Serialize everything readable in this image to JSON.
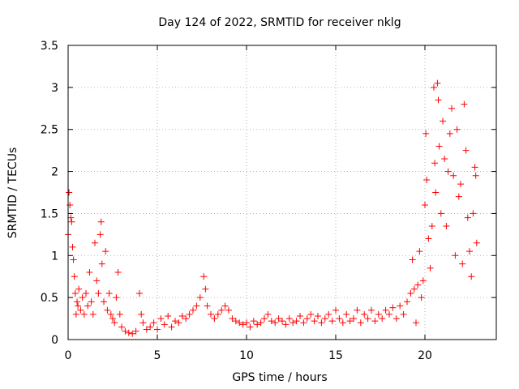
{
  "chart_data": {
    "type": "scatter",
    "title": "Day 124 of 2022, SRMTID for receiver nklg",
    "xlabel": "GPS time / hours",
    "ylabel": "SRMTID / TECUs",
    "xlim": [
      0,
      24
    ],
    "ylim": [
      0,
      3.5
    ],
    "xticks": [
      0,
      5,
      10,
      15,
      20
    ],
    "xtick_labels": [
      "0",
      "5",
      "10",
      "15",
      "20"
    ],
    "yticks": [
      0,
      0.5,
      1,
      1.5,
      2,
      2.5,
      3,
      3.5
    ],
    "ytick_labels": [
      "0",
      "0.5",
      "1",
      "1.5",
      "2",
      "2.5",
      "3",
      "3.5"
    ],
    "grid": true,
    "marker": "+",
    "series": [
      {
        "name": "SRMTID",
        "color": "#ff0000",
        "points": [
          [
            0.0,
            1.25
          ],
          [
            0.05,
            1.75
          ],
          [
            0.1,
            1.6
          ],
          [
            0.15,
            1.45
          ],
          [
            0.2,
            1.4
          ],
          [
            0.25,
            1.1
          ],
          [
            0.3,
            0.95
          ],
          [
            0.35,
            0.75
          ],
          [
            0.4,
            0.55
          ],
          [
            0.45,
            0.3
          ],
          [
            0.5,
            0.45
          ],
          [
            0.55,
            0.4
          ],
          [
            0.6,
            0.6
          ],
          [
            0.7,
            0.35
          ],
          [
            0.8,
            0.5
          ],
          [
            0.9,
            0.3
          ],
          [
            1.0,
            0.55
          ],
          [
            1.1,
            0.4
          ],
          [
            1.2,
            0.8
          ],
          [
            1.3,
            0.45
          ],
          [
            1.4,
            0.3
          ],
          [
            1.5,
            1.15
          ],
          [
            1.6,
            0.7
          ],
          [
            1.7,
            0.55
          ],
          [
            1.8,
            1.25
          ],
          [
            1.85,
            1.4
          ],
          [
            1.9,
            0.9
          ],
          [
            2.0,
            0.45
          ],
          [
            2.1,
            1.05
          ],
          [
            2.2,
            0.35
          ],
          [
            2.3,
            0.55
          ],
          [
            2.4,
            0.3
          ],
          [
            2.5,
            0.25
          ],
          [
            2.6,
            0.2
          ],
          [
            2.7,
            0.5
          ],
          [
            2.8,
            0.8
          ],
          [
            2.9,
            0.3
          ],
          [
            3.0,
            0.15
          ],
          [
            3.2,
            0.1
          ],
          [
            3.4,
            0.08
          ],
          [
            3.6,
            0.07
          ],
          [
            3.8,
            0.1
          ],
          [
            4.0,
            0.55
          ],
          [
            4.1,
            0.3
          ],
          [
            4.2,
            0.2
          ],
          [
            4.4,
            0.12
          ],
          [
            4.6,
            0.15
          ],
          [
            4.8,
            0.2
          ],
          [
            5.0,
            0.12
          ],
          [
            5.2,
            0.25
          ],
          [
            5.4,
            0.18
          ],
          [
            5.6,
            0.28
          ],
          [
            5.8,
            0.15
          ],
          [
            6.0,
            0.22
          ],
          [
            6.2,
            0.2
          ],
          [
            6.4,
            0.28
          ],
          [
            6.6,
            0.25
          ],
          [
            6.8,
            0.3
          ],
          [
            7.0,
            0.35
          ],
          [
            7.2,
            0.4
          ],
          [
            7.4,
            0.5
          ],
          [
            7.6,
            0.75
          ],
          [
            7.7,
            0.6
          ],
          [
            7.8,
            0.4
          ],
          [
            8.0,
            0.3
          ],
          [
            8.2,
            0.25
          ],
          [
            8.4,
            0.3
          ],
          [
            8.6,
            0.35
          ],
          [
            8.8,
            0.4
          ],
          [
            9.0,
            0.35
          ],
          [
            9.2,
            0.25
          ],
          [
            9.4,
            0.22
          ],
          [
            9.6,
            0.2
          ],
          [
            9.8,
            0.18
          ],
          [
            10.0,
            0.2
          ],
          [
            10.2,
            0.15
          ],
          [
            10.4,
            0.22
          ],
          [
            10.6,
            0.18
          ],
          [
            10.8,
            0.2
          ],
          [
            11.0,
            0.25
          ],
          [
            11.2,
            0.3
          ],
          [
            11.4,
            0.22
          ],
          [
            11.6,
            0.2
          ],
          [
            11.8,
            0.25
          ],
          [
            12.0,
            0.22
          ],
          [
            12.2,
            0.18
          ],
          [
            12.4,
            0.25
          ],
          [
            12.6,
            0.2
          ],
          [
            12.8,
            0.22
          ],
          [
            13.0,
            0.28
          ],
          [
            13.2,
            0.2
          ],
          [
            13.4,
            0.25
          ],
          [
            13.6,
            0.3
          ],
          [
            13.8,
            0.22
          ],
          [
            14.0,
            0.28
          ],
          [
            14.2,
            0.2
          ],
          [
            14.4,
            0.25
          ],
          [
            14.6,
            0.3
          ],
          [
            14.8,
            0.22
          ],
          [
            15.0,
            0.35
          ],
          [
            15.2,
            0.25
          ],
          [
            15.4,
            0.2
          ],
          [
            15.6,
            0.3
          ],
          [
            15.8,
            0.22
          ],
          [
            16.0,
            0.25
          ],
          [
            16.2,
            0.35
          ],
          [
            16.4,
            0.2
          ],
          [
            16.6,
            0.3
          ],
          [
            16.8,
            0.25
          ],
          [
            17.0,
            0.35
          ],
          [
            17.2,
            0.22
          ],
          [
            17.4,
            0.3
          ],
          [
            17.6,
            0.25
          ],
          [
            17.8,
            0.35
          ],
          [
            18.0,
            0.3
          ],
          [
            18.2,
            0.38
          ],
          [
            18.4,
            0.25
          ],
          [
            18.6,
            0.4
          ],
          [
            18.8,
            0.3
          ],
          [
            19.0,
            0.45
          ],
          [
            19.2,
            0.55
          ],
          [
            19.3,
            0.95
          ],
          [
            19.4,
            0.6
          ],
          [
            19.5,
            0.2
          ],
          [
            19.6,
            0.65
          ],
          [
            19.7,
            1.05
          ],
          [
            19.8,
            0.5
          ],
          [
            19.9,
            0.7
          ],
          [
            20.0,
            1.6
          ],
          [
            20.05,
            2.45
          ],
          [
            20.1,
            1.9
          ],
          [
            20.2,
            1.2
          ],
          [
            20.3,
            0.85
          ],
          [
            20.4,
            1.35
          ],
          [
            20.5,
            3.0
          ],
          [
            20.55,
            2.1
          ],
          [
            20.6,
            1.75
          ],
          [
            20.7,
            3.05
          ],
          [
            20.75,
            2.85
          ],
          [
            20.8,
            2.3
          ],
          [
            20.9,
            1.5
          ],
          [
            21.0,
            2.6
          ],
          [
            21.1,
            2.15
          ],
          [
            21.2,
            1.35
          ],
          [
            21.3,
            2.0
          ],
          [
            21.4,
            2.45
          ],
          [
            21.5,
            2.75
          ],
          [
            21.6,
            1.95
          ],
          [
            21.7,
            1.0
          ],
          [
            21.8,
            2.5
          ],
          [
            21.9,
            1.7
          ],
          [
            22.0,
            1.85
          ],
          [
            22.1,
            0.9
          ],
          [
            22.2,
            2.8
          ],
          [
            22.3,
            2.25
          ],
          [
            22.4,
            1.45
          ],
          [
            22.5,
            1.05
          ],
          [
            22.6,
            0.75
          ],
          [
            22.7,
            1.5
          ],
          [
            22.8,
            2.05
          ],
          [
            22.85,
            1.95
          ],
          [
            22.9,
            1.15
          ]
        ]
      }
    ]
  }
}
